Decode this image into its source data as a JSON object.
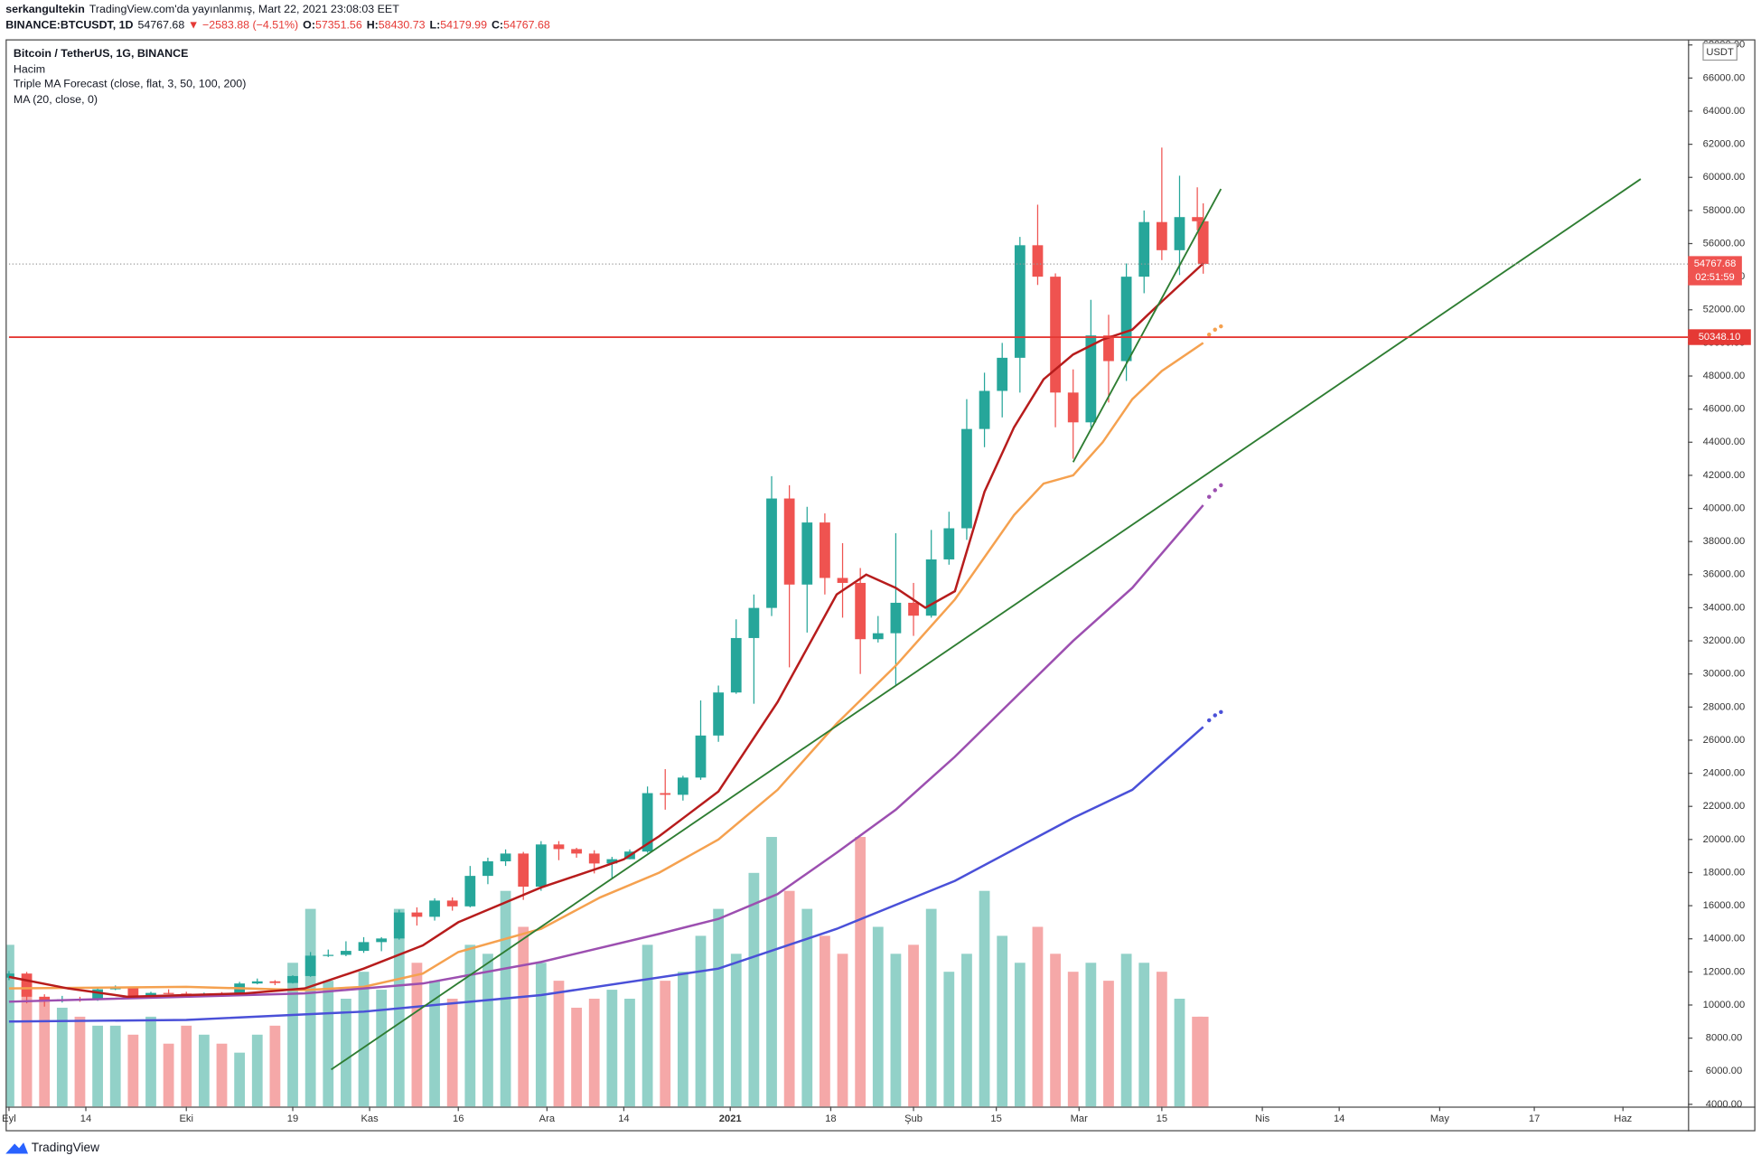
{
  "header": {
    "author": "serkangultekin",
    "published": "TradingView.com'da yayınlanmış, Mart 22, 2021 23:08:03 EET",
    "symbol": "BINANCE:BTCUSDT, 1D",
    "last": "54767.68",
    "arrow": "▼",
    "change": "−2583.88 (−4.51%)",
    "ohlc": [
      {
        "label": "O:",
        "value": "57351.56"
      },
      {
        "label": "H:",
        "value": "58430.73"
      },
      {
        "label": "L:",
        "value": "54179.99"
      },
      {
        "label": "C:",
        "value": "54767.68"
      }
    ]
  },
  "footer": {
    "brand": "TradingView"
  },
  "chart_data": {
    "type": "candlestick",
    "title": "Bitcoin / TetherUS, 1G, BINANCE",
    "currency": "USDT",
    "up_color": "#26a69a",
    "down_color": "#ef5350",
    "volume_up_color": "#92d1c8",
    "volume_down_color": "#f5a8a8",
    "xlim": [
      0,
      284
    ],
    "ylim": [
      4000,
      68000
    ],
    "grid": false,
    "xticks": [
      {
        "value": 0,
        "label": "Eyl"
      },
      {
        "value": 13,
        "label": "14"
      },
      {
        "value": 30,
        "label": "Eki"
      },
      {
        "value": 48,
        "label": "19"
      },
      {
        "value": 61,
        "label": "Kas"
      },
      {
        "value": 76,
        "label": "16"
      },
      {
        "value": 91,
        "label": "Ara"
      },
      {
        "value": 104,
        "label": "14"
      },
      {
        "value": 122,
        "label": "2021"
      },
      {
        "value": 139,
        "label": "18"
      },
      {
        "value": 153,
        "label": "Şub"
      },
      {
        "value": 167,
        "label": "15"
      },
      {
        "value": 181,
        "label": "Mar"
      },
      {
        "value": 195,
        "label": "15"
      },
      {
        "value": 212,
        "label": "Nis"
      },
      {
        "value": 225,
        "label": "14"
      },
      {
        "value": 242,
        "label": "May"
      },
      {
        "value": 258,
        "label": "17"
      },
      {
        "value": 273,
        "label": "Haz"
      }
    ],
    "yticks": [
      {
        "value": 4000,
        "label": "4000.00"
      },
      {
        "value": 6000,
        "label": "6000.00"
      },
      {
        "value": 8000,
        "label": "8000.00"
      },
      {
        "value": 10000,
        "label": "10000.00"
      },
      {
        "value": 12000,
        "label": "12000.00"
      },
      {
        "value": 14000,
        "label": "14000.00"
      },
      {
        "value": 16000,
        "label": "16000.00"
      },
      {
        "value": 18000,
        "label": "18000.00"
      },
      {
        "value": 20000,
        "label": "20000.00"
      },
      {
        "value": 22000,
        "label": "22000.00"
      },
      {
        "value": 24000,
        "label": "24000.00"
      },
      {
        "value": 26000,
        "label": "26000.00"
      },
      {
        "value": 28000,
        "label": "28000.00"
      },
      {
        "value": 30000,
        "label": "30000.00"
      },
      {
        "value": 32000,
        "label": "32000.00"
      },
      {
        "value": 34000,
        "label": "34000.00"
      },
      {
        "value": 36000,
        "label": "36000.00"
      },
      {
        "value": 38000,
        "label": "38000.00"
      },
      {
        "value": 40000,
        "label": "40000.00"
      },
      {
        "value": 42000,
        "label": "42000.00"
      },
      {
        "value": 44000,
        "label": "44000.00"
      },
      {
        "value": 46000,
        "label": "46000.00"
      },
      {
        "value": 48000,
        "label": "48000.00"
      },
      {
        "value": 50000,
        "label": "50000.00"
      },
      {
        "value": 52000,
        "label": "52000.00"
      },
      {
        "value": 54000,
        "label": "54000.00"
      },
      {
        "value": 56000,
        "label": "56000.00"
      },
      {
        "value": 58000,
        "label": "58000.00"
      },
      {
        "value": 60000,
        "label": "60000.00"
      },
      {
        "value": 62000,
        "label": "62000.00"
      },
      {
        "value": 64000,
        "label": "64000.00"
      },
      {
        "value": 66000,
        "label": "66000.00"
      },
      {
        "value": 68000,
        "label": "68000.00"
      }
    ],
    "candles": {
      "x": [
        0,
        3,
        6,
        9,
        12,
        15,
        18,
        21,
        24,
        27,
        30,
        33,
        36,
        39,
        42,
        45,
        48,
        51,
        54,
        57,
        60,
        63,
        66,
        69,
        72,
        75,
        78,
        81,
        84,
        87,
        90,
        93,
        96,
        99,
        102,
        105,
        108,
        111,
        114,
        117,
        120,
        123,
        126,
        129,
        132,
        135,
        138,
        141,
        144,
        147,
        150,
        153,
        156,
        159,
        162,
        165,
        168,
        171,
        174,
        177,
        180,
        183,
        186,
        189,
        192,
        195,
        198,
        201,
        202
      ],
      "ohlc": [
        [
          11650,
          12050,
          11500,
          11900
        ],
        [
          11900,
          12000,
          10100,
          10500
        ],
        [
          10500,
          10650,
          9900,
          10250
        ],
        [
          10250,
          10550,
          10150,
          10350
        ],
        [
          10350,
          10500,
          10200,
          10300
        ],
        [
          10300,
          11100,
          10250,
          10950
        ],
        [
          10950,
          11180,
          10900,
          11080
        ],
        [
          11080,
          11100,
          10380,
          10520
        ],
        [
          10520,
          10800,
          10450,
          10730
        ],
        [
          10730,
          10950,
          10650,
          10690
        ],
        [
          10690,
          10800,
          10550,
          10620
        ],
        [
          10620,
          10750,
          10500,
          10680
        ],
        [
          10680,
          10780,
          10550,
          10670
        ],
        [
          10670,
          11400,
          10650,
          11300
        ],
        [
          11300,
          11600,
          11250,
          11430
        ],
        [
          11430,
          11500,
          11200,
          11330
        ],
        [
          11330,
          11800,
          11300,
          11750
        ],
        [
          11750,
          13200,
          11700,
          12980
        ],
        [
          12980,
          13350,
          12900,
          13030
        ],
        [
          13030,
          13850,
          12950,
          13270
        ],
        [
          13270,
          14100,
          13150,
          13800
        ],
        [
          13800,
          14100,
          13250,
          14020
        ],
        [
          14020,
          15750,
          13950,
          15590
        ],
        [
          15590,
          15900,
          14800,
          15330
        ],
        [
          15330,
          16450,
          15100,
          16310
        ],
        [
          16310,
          16500,
          15700,
          15960
        ],
        [
          15960,
          18400,
          15900,
          17800
        ],
        [
          17800,
          18900,
          17300,
          18680
        ],
        [
          18680,
          19400,
          18400,
          19150
        ],
        [
          19150,
          19250,
          16350,
          17150
        ],
        [
          17150,
          19900,
          16900,
          19700
        ],
        [
          19700,
          19900,
          18750,
          19420
        ],
        [
          19420,
          19500,
          18900,
          19150
        ],
        [
          19150,
          19350,
          17950,
          18550
        ],
        [
          18550,
          18950,
          17600,
          18810
        ],
        [
          18810,
          19400,
          18800,
          19270
        ],
        [
          19270,
          23200,
          19200,
          22800
        ],
        [
          22800,
          24250,
          21800,
          22700
        ],
        [
          22700,
          23850,
          22350,
          23740
        ],
        [
          23740,
          28400,
          23600,
          26280
        ],
        [
          26280,
          29300,
          25900,
          28880
        ],
        [
          28880,
          33300,
          28800,
          32170
        ],
        [
          32170,
          34800,
          28200,
          33990
        ],
        [
          33990,
          41950,
          33500,
          40600
        ],
        [
          40600,
          41400,
          30400,
          35400
        ],
        [
          35400,
          40100,
          32500,
          39150
        ],
        [
          39150,
          39700,
          34800,
          35800
        ],
        [
          35800,
          37900,
          33400,
          35500
        ],
        [
          35500,
          36400,
          30000,
          32100
        ],
        [
          32100,
          33500,
          31900,
          32460
        ],
        [
          32460,
          38500,
          29300,
          34300
        ],
        [
          34300,
          35500,
          32300,
          33520
        ],
        [
          33520,
          38700,
          33400,
          36920
        ],
        [
          36920,
          39800,
          36600,
          38800
        ],
        [
          38800,
          46600,
          38100,
          44800
        ],
        [
          44800,
          48200,
          43700,
          47100
        ],
        [
          47100,
          50000,
          45500,
          49100
        ],
        [
          49100,
          56400,
          47000,
          55900
        ],
        [
          55900,
          58350,
          53500,
          54000
        ],
        [
          54000,
          54200,
          44900,
          47000
        ],
        [
          47000,
          48400,
          43000,
          45200
        ],
        [
          45200,
          52600,
          44900,
          50450
        ],
        [
          50450,
          51700,
          46400,
          48900
        ],
        [
          48900,
          54800,
          47700,
          54000
        ],
        [
          54000,
          58000,
          53000,
          57300
        ],
        [
          57300,
          61800,
          55000,
          55600
        ],
        [
          55600,
          60100,
          54100,
          57600
        ],
        [
          57600,
          59400,
          56800,
          57350
        ],
        [
          57351.56,
          58430.73,
          54179.99,
          54767.68
        ]
      ]
    },
    "volume": {
      "label": "Hacim",
      "values": [
        90,
        70,
        60,
        55,
        50,
        45,
        45,
        40,
        50,
        35,
        45,
        40,
        35,
        30,
        40,
        45,
        80,
        110,
        70,
        60,
        75,
        65,
        110,
        80,
        70,
        60,
        90,
        85,
        120,
        100,
        80,
        70,
        55,
        60,
        65,
        60,
        90,
        70,
        75,
        95,
        110,
        85,
        130,
        150,
        120,
        110,
        95,
        85,
        150,
        100,
        85,
        90,
        110,
        75,
        85,
        120,
        95,
        80,
        100,
        85,
        75,
        80,
        70,
        85,
        80,
        75,
        60,
        50,
        50
      ]
    },
    "indicators": [
      {
        "label": "Triple MA Forecast (close, flat, 3, 50, 100, 200)",
        "lines": [
          {
            "color": "#f5a14f",
            "x": [
              0,
              30,
              50,
              60,
              70,
              76,
              90,
              100,
              110,
              120,
              130,
              140,
              150,
              160,
              170,
              175,
              180,
              185,
              190,
              195,
              202
            ],
            "values": [
              11000,
              11100,
              10900,
              11100,
              11900,
              13200,
              14600,
              16500,
              18000,
              20000,
              23000,
              27000,
              30500,
              34500,
              39600,
              41500,
              42000,
              44000,
              46600,
              48300,
              50000
            ],
            "forecast_x": [
              203,
              204,
              205
            ],
            "forecast": [
              50500,
              50800,
              51000
            ]
          },
          {
            "color": "#9c4fb0",
            "x": [
              0,
              50,
              70,
              90,
              110,
              120,
              130,
              140,
              150,
              160,
              170,
              180,
              190,
              202
            ],
            "values": [
              10200,
              10700,
              11300,
              12600,
              14300,
              15200,
              16700,
              19200,
              21800,
              25000,
              28500,
              32000,
              35200,
              40200
            ],
            "forecast_x": [
              203,
              204,
              205
            ],
            "forecast": [
              40700,
              41100,
              41400
            ]
          },
          {
            "color": "#4a50d8",
            "x": [
              0,
              30,
              60,
              90,
              120,
              140,
              160,
              180,
              190,
              202
            ],
            "values": [
              9000,
              9100,
              9600,
              10600,
              12200,
              14600,
              17500,
              21300,
              23000,
              26800
            ],
            "forecast_x": [
              203,
              204,
              205
            ],
            "forecast": [
              27200,
              27500,
              27700
            ]
          }
        ]
      },
      {
        "label": "MA (20, close, 0)",
        "lines": [
          {
            "color": "#b71c1c",
            "x": [
              0,
              10,
              20,
              30,
              40,
              50,
              60,
              70,
              76,
              80,
              90,
              100,
              104,
              110,
              120,
              130,
              140,
              145,
              150,
              155,
              160,
              165,
              170,
              175,
              180,
              185,
              190,
              195,
              202
            ],
            "values": [
              11700,
              11000,
              10500,
              10600,
              10700,
              11000,
              12200,
              13600,
              15000,
              15600,
              17100,
              18300,
              18800,
              20200,
              22900,
              28300,
              34800,
              36000,
              35200,
              34000,
              35000,
              41000,
              44900,
              47800,
              49300,
              50200,
              50800,
              52500,
              54800
            ]
          }
        ]
      }
    ],
    "trend_lines": [
      {
        "color": "#2e7d32",
        "x": [
          54.5,
          276
        ],
        "values": [
          6100,
          59900
        ]
      },
      {
        "color": "#2e7d32",
        "x": [
          180,
          205
        ],
        "values": [
          42800,
          59300
        ]
      }
    ],
    "hline": {
      "value": 50348.1,
      "label": "50348.10",
      "color": "#e53935"
    },
    "price_label": {
      "text": "54767.68",
      "countdown": "02:51:59"
    }
  }
}
